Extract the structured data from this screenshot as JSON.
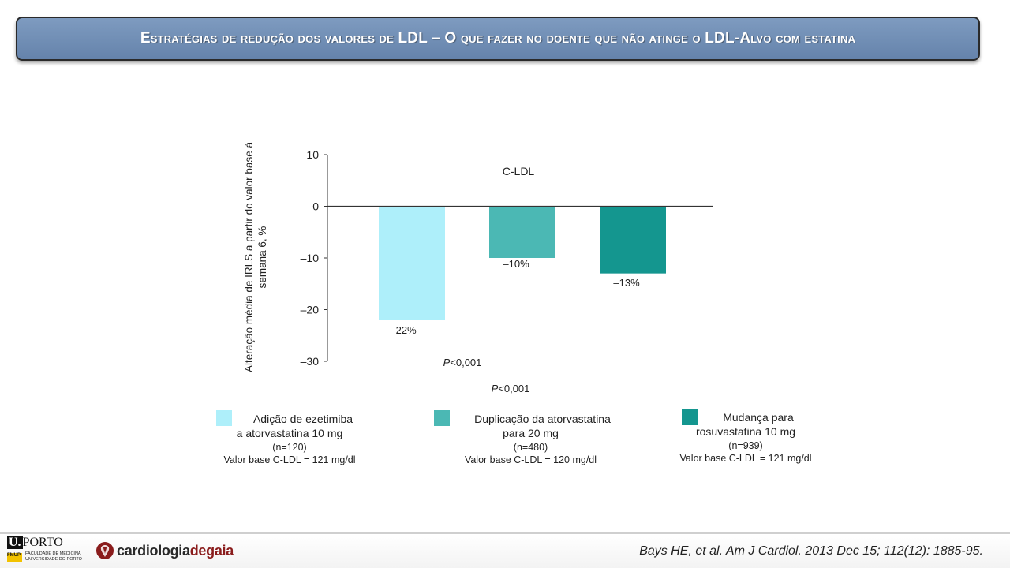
{
  "slide": {
    "title": "Estratégias de redução dos valores de LDL – O que fazer no doente que não atinge o LDL-Alvo com estatina",
    "citation": "Bays HE, et al. Am J Cardiol. 2013 Dec 15; 112(12): 1885-95."
  },
  "chart_data": {
    "type": "bar",
    "title": "C-LDL",
    "ylabel": "Alteração média de IRLS a partir do valor base à semana 6, %",
    "ylim": [
      -30,
      10
    ],
    "yticks": [
      10,
      0,
      -10,
      -20,
      -30
    ],
    "ytick_labels": [
      "10",
      "0",
      "–10",
      "–20",
      "–30"
    ],
    "grid": false,
    "series": [
      {
        "name": "Adição de ezetimiba a atorvastatina 10 mg",
        "value": -22,
        "label": "–22%",
        "color": "#aeeffa"
      },
      {
        "name": "Duplicação da atorvastatina para 20 mg",
        "value": -10,
        "label": "–10%",
        "color": "#4bb8b4"
      },
      {
        "name": "Mudança para rosuvastatina 10 mg",
        "value": -13,
        "label": "–13%",
        "color": "#14968f"
      }
    ],
    "annotations": [
      "P<0,001",
      "P<0,001"
    ]
  },
  "legend": [
    {
      "line1": "Adição de ezetimiba",
      "line2": "a atorvastatina 10 mg",
      "n": "(n=120)",
      "base": "Valor base C-LDL = 121 mg/dl",
      "color": "#aeeffa"
    },
    {
      "line1": "Duplicação da atorvastatina",
      "line2": "para 20 mg",
      "n": "(n=480)",
      "base": "Valor base C-LDL = 120 mg/dl",
      "color": "#4bb8b4"
    },
    {
      "line1": "Mudança para",
      "line2": "rosuvastatina 10 mg",
      "n": "(n=939)",
      "base": "Valor base C-LDL = 121 mg/dl",
      "color": "#14968f"
    }
  ],
  "footer": {
    "uporto_u": "U.",
    "uporto_name": "PORTO",
    "fmup": "FMUP",
    "faculty_line1": "FACULDADE DE MEDICINA",
    "faculty_line2": "UNIVERSIDADE DO PORTO",
    "brand_main": "cardiologia",
    "brand_accent": "degaia"
  }
}
